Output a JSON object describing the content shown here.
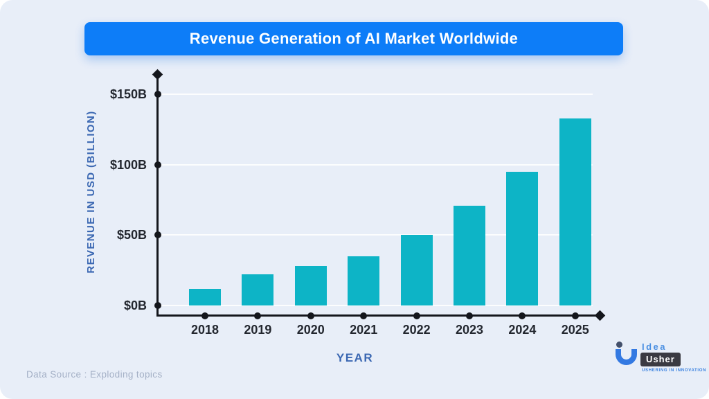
{
  "banner": {
    "title": "Revenue Generation of AI Market Worldwide"
  },
  "chart_data": {
    "type": "bar",
    "title": "Revenue Generation of AI Market Worldwide",
    "categories": [
      "2018",
      "2019",
      "2020",
      "2021",
      "2022",
      "2023",
      "2024",
      "2025"
    ],
    "values": [
      12,
      22,
      28,
      35,
      50,
      71,
      95,
      133
    ],
    "xlabel": "YEAR",
    "ylabel": "REVENUE IN USD (BILLION)",
    "ylim": [
      0,
      150
    ],
    "yticks": [
      {
        "value": 150,
        "label": "$150B"
      },
      {
        "value": 100,
        "label": "$100B"
      },
      {
        "value": 50,
        "label": "$50B"
      },
      {
        "value": 0,
        "label": "$0B"
      }
    ],
    "grid": true,
    "legend": false,
    "bar_color": "#0db4c6"
  },
  "footer": {
    "data_source": "Data Source : Exploding topics"
  },
  "logo": {
    "brand_top": "Idea",
    "brand_bottom": "Usher",
    "tagline": "USHERING IN INNOVATION"
  },
  "colors": {
    "background": "#e8eef8",
    "banner": "#0d7df8",
    "bar": "#0db4c6",
    "axis": "#14161c",
    "tick_text": "#23272f",
    "accent_text": "#3a67b2",
    "muted_text": "#a4b0c6"
  }
}
